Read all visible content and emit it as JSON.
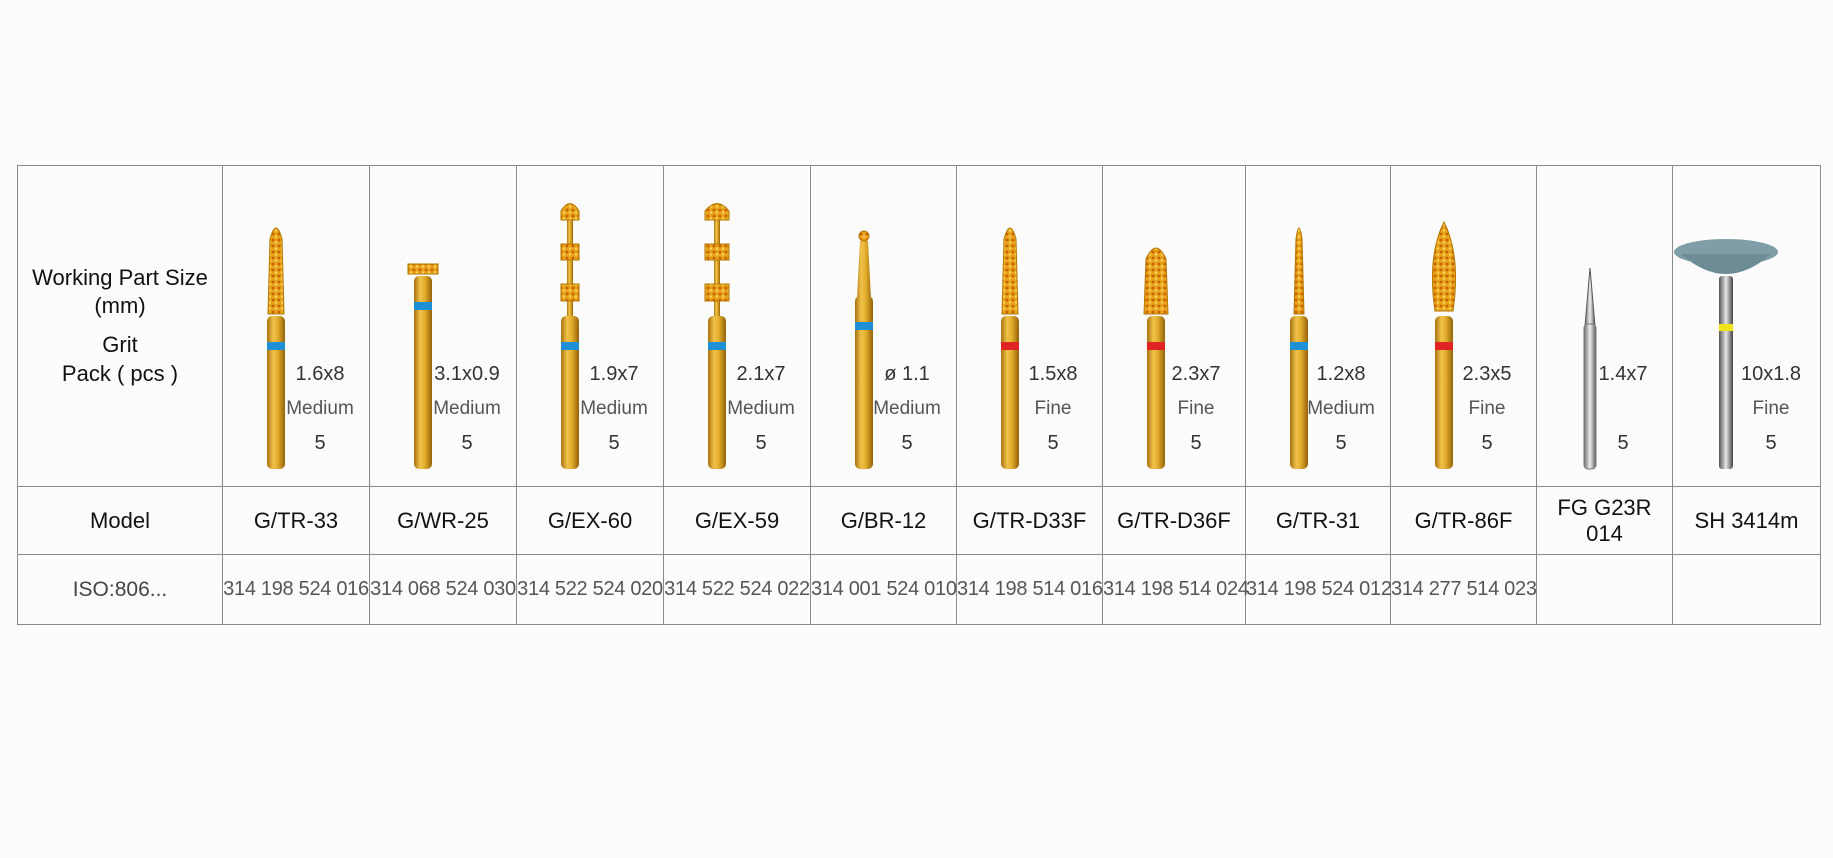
{
  "row_headers": {
    "working_part_size": "Working Part Size",
    "unit": "(mm)",
    "grit": "Grit",
    "pack": "Pack ( pcs )",
    "model": "Model",
    "iso": "ISO:806..."
  },
  "products": [
    {
      "model": "G/TR-33",
      "size": "1.6x8",
      "grit": "Medium",
      "pack": "5",
      "iso": "314 198 524 016",
      "band_color": "#1f8fd6",
      "tool_icon": "tapered-round-diamond-bur-icon"
    },
    {
      "model": "G/WR-25",
      "size": "3.1x0.9",
      "grit": "Medium",
      "pack": "5",
      "iso": "314 068 524 030",
      "band_color": "#1f8fd6",
      "tool_icon": "wheel-diamond-bur-icon"
    },
    {
      "model": "G/EX-60",
      "size": "1.9x7",
      "grit": "Medium",
      "pack": "5",
      "iso": "314 522 524 020",
      "band_color": "#1f8fd6",
      "tool_icon": "depth-marker-bur-icon"
    },
    {
      "model": "G/EX-59",
      "size": "2.1x7",
      "grit": "Medium",
      "pack": "5",
      "iso": "314 522 524 022",
      "band_color": "#1f8fd6",
      "tool_icon": "depth-marker-bur-icon"
    },
    {
      "model": "G/BR-12",
      "size": "ø 1.1",
      "grit": "Medium",
      "pack": "5",
      "iso": "314 001 524 010",
      "band_color": "#1f8fd6",
      "tool_icon": "round-diamond-bur-icon"
    },
    {
      "model": "G/TR-D33F",
      "size": "1.5x8",
      "grit": "Fine",
      "pack": "5",
      "iso": "314 198 514 016",
      "band_color": "#e02424",
      "tool_icon": "tapered-round-diamond-bur-icon"
    },
    {
      "model": "G/TR-D36F",
      "size": "2.3x7",
      "grit": "Fine",
      "pack": "5",
      "iso": "314 198 514 024",
      "band_color": "#e02424",
      "tool_icon": "tapered-round-diamond-bur-icon"
    },
    {
      "model": "G/TR-31",
      "size": "1.2x8",
      "grit": "Medium",
      "pack": "5",
      "iso": "314 198 524 012",
      "band_color": "#1f8fd6",
      "tool_icon": "tapered-round-diamond-bur-icon"
    },
    {
      "model": "G/TR-86F",
      "size": "2.3x5",
      "grit": "Fine",
      "pack": "5",
      "iso": "314 277 514 023",
      "band_color": "#e02424",
      "tool_icon": "flame-diamond-bur-icon"
    },
    {
      "model": "FG G23R 014",
      "size": "1.4x7",
      "grit": "",
      "pack": "5",
      "iso": "",
      "band_color": "#c0c0c0",
      "tool_icon": "carbide-bur-icon"
    },
    {
      "model": "SH 3414m",
      "size": "10x1.8",
      "grit": "Fine",
      "pack": "5",
      "iso": "",
      "band_color": "#f2e21a",
      "tool_icon": "polishing-cup-icon"
    }
  ]
}
